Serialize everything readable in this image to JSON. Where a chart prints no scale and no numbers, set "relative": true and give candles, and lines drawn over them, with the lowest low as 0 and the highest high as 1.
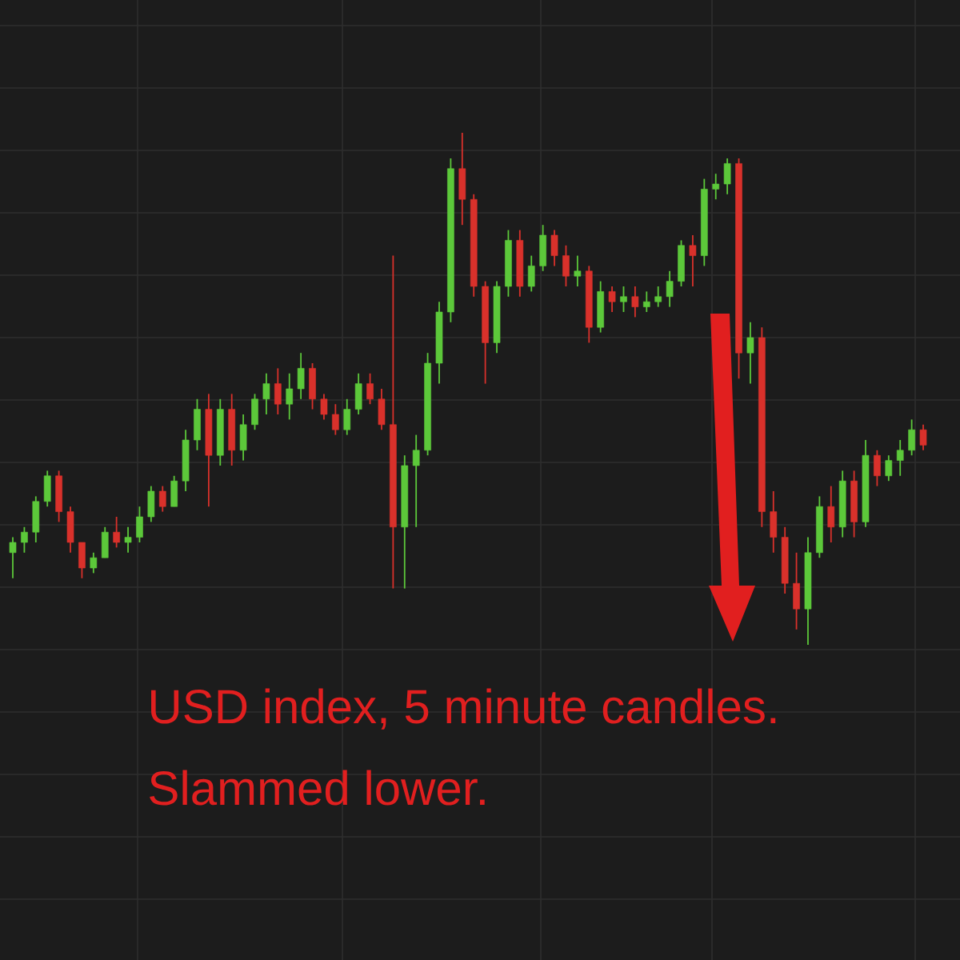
{
  "chart_data": {
    "type": "candlestick",
    "relative": true,
    "grid": true,
    "tick_labels": false,
    "annotations": [
      "USD index, 5 minute candles.",
      "Slammed lower."
    ],
    "categories": [
      null,
      null,
      null,
      null,
      null,
      null,
      null,
      null,
      null,
      null,
      null,
      null,
      null,
      null,
      null,
      null,
      null,
      null,
      null,
      null,
      null,
      null,
      null,
      null,
      null,
      null,
      null,
      null,
      null,
      null,
      null,
      null,
      null,
      null,
      null,
      null,
      null,
      null,
      null,
      null,
      null,
      null,
      null,
      null,
      null,
      null,
      null,
      null,
      null,
      null,
      null,
      null,
      null,
      null,
      null,
      null,
      null,
      null,
      null,
      null,
      null,
      null,
      null,
      null,
      null,
      null,
      null,
      null,
      null,
      null,
      null,
      null,
      null,
      null,
      null,
      null,
      null,
      null,
      null,
      null
    ],
    "ohlc": [
      [
        0.18,
        0.21,
        0.13,
        0.2
      ],
      [
        0.2,
        0.23,
        0.18,
        0.22
      ],
      [
        0.22,
        0.29,
        0.2,
        0.28
      ],
      [
        0.28,
        0.34,
        0.27,
        0.33
      ],
      [
        0.33,
        0.34,
        0.24,
        0.26
      ],
      [
        0.26,
        0.27,
        0.18,
        0.2
      ],
      [
        0.2,
        0.2,
        0.13,
        0.15
      ],
      [
        0.15,
        0.18,
        0.14,
        0.17
      ],
      [
        0.17,
        0.23,
        0.17,
        0.22
      ],
      [
        0.22,
        0.25,
        0.19,
        0.2
      ],
      [
        0.2,
        0.23,
        0.18,
        0.21
      ],
      [
        0.21,
        0.27,
        0.2,
        0.25
      ],
      [
        0.25,
        0.31,
        0.24,
        0.3
      ],
      [
        0.3,
        0.31,
        0.26,
        0.27
      ],
      [
        0.27,
        0.33,
        0.27,
        0.32
      ],
      [
        0.32,
        0.42,
        0.3,
        0.4
      ],
      [
        0.4,
        0.48,
        0.38,
        0.46
      ],
      [
        0.46,
        0.49,
        0.27,
        0.37
      ],
      [
        0.37,
        0.48,
        0.35,
        0.46
      ],
      [
        0.46,
        0.49,
        0.35,
        0.38
      ],
      [
        0.38,
        0.45,
        0.36,
        0.43
      ],
      [
        0.43,
        0.49,
        0.42,
        0.48
      ],
      [
        0.48,
        0.53,
        0.45,
        0.51
      ],
      [
        0.51,
        0.54,
        0.45,
        0.47
      ],
      [
        0.47,
        0.53,
        0.44,
        0.5
      ],
      [
        0.5,
        0.57,
        0.48,
        0.54
      ],
      [
        0.54,
        0.55,
        0.46,
        0.48
      ],
      [
        0.48,
        0.49,
        0.44,
        0.45
      ],
      [
        0.45,
        0.47,
        0.41,
        0.42
      ],
      [
        0.42,
        0.48,
        0.41,
        0.46
      ],
      [
        0.46,
        0.53,
        0.45,
        0.51
      ],
      [
        0.51,
        0.53,
        0.47,
        0.48
      ],
      [
        0.48,
        0.5,
        0.42,
        0.43
      ],
      [
        0.43,
        0.76,
        0.11,
        0.23
      ],
      [
        0.23,
        0.37,
        0.11,
        0.35
      ],
      [
        0.35,
        0.41,
        0.23,
        0.38
      ],
      [
        0.38,
        0.57,
        0.37,
        0.55
      ],
      [
        0.55,
        0.67,
        0.51,
        0.65
      ],
      [
        0.65,
        0.95,
        0.63,
        0.93
      ],
      [
        0.93,
        1.0,
        0.82,
        0.87
      ],
      [
        0.87,
        0.88,
        0.68,
        0.7
      ],
      [
        0.7,
        0.71,
        0.51,
        0.59
      ],
      [
        0.59,
        0.71,
        0.57,
        0.7
      ],
      [
        0.7,
        0.81,
        0.68,
        0.79
      ],
      [
        0.79,
        0.81,
        0.68,
        0.7
      ],
      [
        0.7,
        0.76,
        0.69,
        0.74
      ],
      [
        0.74,
        0.82,
        0.73,
        0.8
      ],
      [
        0.8,
        0.81,
        0.74,
        0.76
      ],
      [
        0.76,
        0.78,
        0.7,
        0.72
      ],
      [
        0.72,
        0.76,
        0.7,
        0.73
      ],
      [
        0.73,
        0.74,
        0.59,
        0.62
      ],
      [
        0.62,
        0.71,
        0.61,
        0.69
      ],
      [
        0.69,
        0.7,
        0.65,
        0.67
      ],
      [
        0.67,
        0.7,
        0.65,
        0.68
      ],
      [
        0.68,
        0.7,
        0.64,
        0.66
      ],
      [
        0.66,
        0.69,
        0.65,
        0.67
      ],
      [
        0.67,
        0.7,
        0.66,
        0.68
      ],
      [
        0.68,
        0.73,
        0.66,
        0.71
      ],
      [
        0.71,
        0.79,
        0.7,
        0.78
      ],
      [
        0.78,
        0.8,
        0.7,
        0.76
      ],
      [
        0.76,
        0.91,
        0.74,
        0.89
      ],
      [
        0.89,
        0.92,
        0.87,
        0.9
      ],
      [
        0.9,
        0.95,
        0.88,
        0.94
      ],
      [
        0.94,
        0.95,
        0.52,
        0.57
      ],
      [
        0.57,
        0.63,
        0.51,
        0.6
      ],
      [
        0.6,
        0.62,
        0.23,
        0.26
      ],
      [
        0.26,
        0.3,
        0.18,
        0.21
      ],
      [
        0.21,
        0.23,
        0.1,
        0.12
      ],
      [
        0.12,
        0.18,
        0.03,
        0.07
      ],
      [
        0.07,
        0.21,
        0.0,
        0.18
      ],
      [
        0.18,
        0.29,
        0.17,
        0.27
      ],
      [
        0.27,
        0.31,
        0.2,
        0.23
      ],
      [
        0.23,
        0.34,
        0.21,
        0.32
      ],
      [
        0.32,
        0.34,
        0.21,
        0.24
      ],
      [
        0.24,
        0.4,
        0.23,
        0.37
      ],
      [
        0.37,
        0.38,
        0.31,
        0.33
      ],
      [
        0.33,
        0.37,
        0.32,
        0.36
      ],
      [
        0.36,
        0.4,
        0.33,
        0.38
      ],
      [
        0.38,
        0.44,
        0.37,
        0.42
      ],
      [
        0.42,
        0.43,
        0.38,
        0.39
      ]
    ],
    "colors": [
      "#5cc83a",
      "#5cc83a",
      "#5cc83a",
      "#5cc83a",
      "#d9312b",
      "#d9312b",
      "#d9312b",
      "#5cc83a",
      "#5cc83a",
      "#d9312b",
      "#5cc83a",
      "#5cc83a",
      "#5cc83a",
      "#d9312b",
      "#5cc83a",
      "#5cc83a",
      "#5cc83a",
      "#d9312b",
      "#5cc83a",
      "#d9312b",
      "#5cc83a",
      "#5cc83a",
      "#5cc83a",
      "#d9312b",
      "#5cc83a",
      "#5cc83a",
      "#d9312b",
      "#d9312b",
      "#d9312b",
      "#5cc83a",
      "#5cc83a",
      "#d9312b",
      "#d9312b",
      "#d9312b",
      "#5cc83a",
      "#5cc83a",
      "#5cc83a",
      "#5cc83a",
      "#5cc83a",
      "#d9312b",
      "#d9312b",
      "#d9312b",
      "#5cc83a",
      "#5cc83a",
      "#d9312b",
      "#5cc83a",
      "#5cc83a",
      "#d9312b",
      "#d9312b",
      "#5cc83a",
      "#d9312b",
      "#5cc83a",
      "#d9312b",
      "#5cc83a",
      "#d9312b",
      "#5cc83a",
      "#5cc83a",
      "#5cc83a",
      "#5cc83a",
      "#d9312b",
      "#5cc83a",
      "#5cc83a",
      "#5cc83a",
      "#d9312b",
      "#5cc83a",
      "#d9312b",
      "#d9312b",
      "#d9312b",
      "#d9312b",
      "#5cc83a",
      "#5cc83a",
      "#d9312b",
      "#5cc83a",
      "#d9312b",
      "#5cc83a",
      "#d9312b",
      "#5cc83a",
      "#5cc83a",
      "#5cc83a",
      "#d9312b"
    ]
  }
}
